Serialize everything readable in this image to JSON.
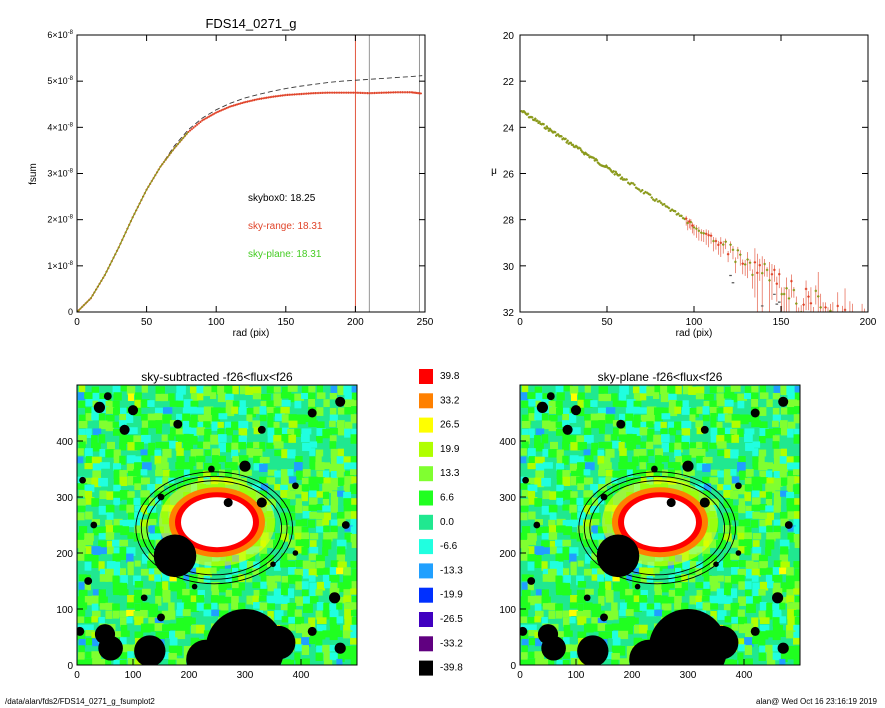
{
  "colors": {
    "data": "#e0442a",
    "model": "#3a3a3a",
    "green": "#44cc22",
    "olive": "#8b9a1c",
    "gray": "#8a8a8a"
  },
  "footer": {
    "path": "/data/alan/fds2/FDS14_0271_g_fsumplot2",
    "stamp": "alan@  Wed Oct 16 23:16:19 2019"
  },
  "chart_data": [
    {
      "type": "line",
      "title": "FDS14_0271_g",
      "xlabel": "rad (pix)",
      "ylabel": "fsum",
      "xlim": [
        0,
        250
      ],
      "ylim": [
        0,
        6e-08
      ],
      "xticks": [
        "0",
        "50",
        "100",
        "150",
        "200",
        "250"
      ],
      "yticks": [
        {
          "mant": "0",
          "exp": ""
        },
        {
          "mant": "1×10",
          "exp": "-8"
        },
        {
          "mant": "2×10",
          "exp": "-8"
        },
        {
          "mant": "3×10",
          "exp": "-8"
        },
        {
          "mant": "4×10",
          "exp": "-8"
        },
        {
          "mant": "5×10",
          "exp": "-8"
        },
        {
          "mant": "6×10",
          "exp": "-8"
        }
      ],
      "annotations": [
        "skybox0: 18.25",
        "sky-range: 18.31",
        "sky-plane: 18.31"
      ],
      "vlines": [
        200,
        210,
        246
      ],
      "series": [
        {
          "style": "dashed",
          "x": [
            0,
            10,
            20,
            30,
            40,
            50,
            60,
            70,
            80,
            90,
            100,
            110,
            120,
            130,
            140,
            150,
            160,
            170,
            180,
            190,
            200,
            210,
            220,
            230,
            240,
            248
          ],
          "y": [
            0,
            3e-09,
            8e-09,
            1.4e-08,
            2.05e-08,
            2.65e-08,
            3.15e-08,
            3.6e-08,
            3.95e-08,
            4.2e-08,
            4.38e-08,
            4.52e-08,
            4.63e-08,
            4.71e-08,
            4.78e-08,
            4.84e-08,
            4.89e-08,
            4.93e-08,
            4.97e-08,
            5e-08,
            5.02e-08,
            5.04e-08,
            5.06e-08,
            5.08e-08,
            5.1e-08,
            5.12e-08
          ]
        },
        {
          "style": "points",
          "x": [
            0,
            10,
            20,
            30,
            40,
            50,
            60,
            70,
            80,
            90,
            100,
            110,
            120,
            130,
            140,
            150,
            160,
            170,
            180,
            190,
            200,
            210,
            220,
            230,
            240,
            248
          ],
          "y": [
            0,
            3e-09,
            8e-09,
            1.4e-08,
            2.05e-08,
            2.65e-08,
            3.15e-08,
            3.55e-08,
            3.9e-08,
            4.15e-08,
            4.32e-08,
            4.45e-08,
            4.54e-08,
            4.61e-08,
            4.66e-08,
            4.7e-08,
            4.72e-08,
            4.74e-08,
            4.75e-08,
            4.75e-08,
            4.75e-08,
            4.74e-08,
            4.75e-08,
            4.76e-08,
            4.76e-08,
            4.73e-08
          ]
        }
      ]
    },
    {
      "type": "scatter",
      "xlabel": "rad (pix)",
      "ylabel": "μ",
      "xlim": [
        0,
        200
      ],
      "ylim": [
        32,
        20
      ],
      "xticks": [
        "0",
        "50",
        "100",
        "150",
        "200"
      ],
      "yticks": [
        "20",
        "22",
        "24",
        "26",
        "28",
        "30",
        "32"
      ],
      "profile": {
        "x0": 1,
        "mu0": 23.3,
        "slope": 0.05,
        "noise_start": 95
      }
    },
    {
      "type": "heatmap",
      "title": "sky-subtracted -f26<flux<f26",
      "xlim": [
        0,
        500
      ],
      "ylim": [
        0,
        500
      ],
      "xticks": [
        "0",
        "100",
        "200",
        "300",
        "400"
      ],
      "yticks": [
        "0",
        "100",
        "200",
        "300",
        "400"
      ]
    },
    {
      "type": "heatmap",
      "title": "sky-plane -f26<flux<f26",
      "xlim": [
        0,
        500
      ],
      "ylim": [
        0,
        500
      ],
      "xticks": [
        "0",
        "100",
        "200",
        "300",
        "400"
      ],
      "yticks": [
        "0",
        "100",
        "200",
        "300",
        "400"
      ]
    }
  ],
  "colorbar": [
    {
      "value": "39.8",
      "color": "#ff0000"
    },
    {
      "value": "33.2",
      "color": "#ff8000"
    },
    {
      "value": "26.5",
      "color": "#ffff00"
    },
    {
      "value": "19.9",
      "color": "#b0ff00"
    },
    {
      "value": "13.3",
      "color": "#80ff30"
    },
    {
      "value": "6.6",
      "color": "#20ff20"
    },
    {
      "value": "0.0",
      "color": "#20e890"
    },
    {
      "value": "-6.6",
      "color": "#20ffe0"
    },
    {
      "value": "-13.3",
      "color": "#20a0ff"
    },
    {
      "value": "-19.9",
      "color": "#0030ff"
    },
    {
      "value": "-26.5",
      "color": "#4000c0"
    },
    {
      "value": "-33.2",
      "color": "#600080"
    },
    {
      "value": "-39.8",
      "color": "#000000"
    }
  ]
}
